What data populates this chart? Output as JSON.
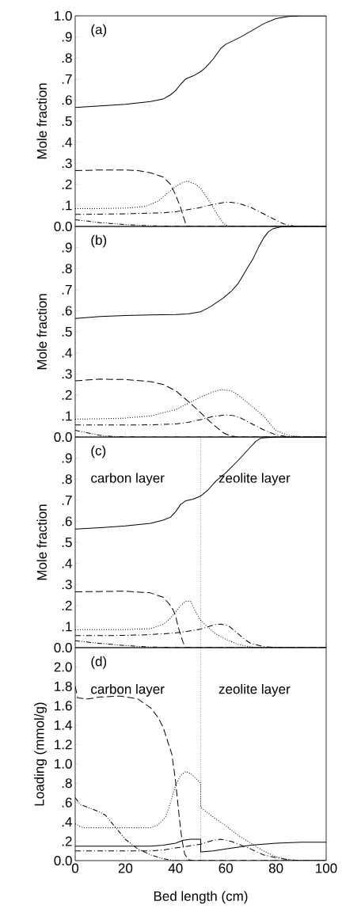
{
  "chart_data": [
    {
      "type": "line",
      "ylabel": "Mole fraction",
      "annotations": [
        "(a)"
      ],
      "xlim": [
        0,
        100
      ],
      "ylim": [
        0,
        1.0
      ],
      "xticks": [
        0,
        20,
        40,
        60,
        80,
        100
      ],
      "tick_labels": "y",
      "yticks": [
        {
          "value": 0,
          "label": "0.0"
        },
        {
          "value": 0.1,
          "label": ".1"
        },
        {
          "value": 0.2,
          "label": ".2"
        },
        {
          "value": 0.3,
          "label": ".3"
        },
        {
          "value": 0.4,
          "label": ".4"
        },
        {
          "value": 0.5,
          "label": ".5"
        },
        {
          "value": 0.6,
          "label": ".6"
        },
        {
          "value": 0.7,
          "label": ".7"
        },
        {
          "value": 0.8,
          "label": ".8"
        },
        {
          "value": 0.9,
          "label": ".9"
        },
        {
          "value": 1.0,
          "label": "1.0"
        }
      ],
      "series": [
        {
          "color": "#000000",
          "line_style": "solid",
          "x": [
            0,
            10,
            20,
            30,
            35,
            38,
            40,
            42,
            44,
            47,
            50,
            52,
            55,
            58,
            60,
            63,
            66,
            70,
            75,
            80,
            85,
            90,
            100
          ],
          "values": [
            0.565,
            0.572,
            0.58,
            0.593,
            0.605,
            0.625,
            0.645,
            0.675,
            0.7,
            0.715,
            0.735,
            0.755,
            0.795,
            0.845,
            0.865,
            0.882,
            0.9,
            0.927,
            0.962,
            0.987,
            0.997,
            1.0,
            1.0
          ]
        },
        {
          "color": "#000000",
          "line_style": "dashed",
          "x": [
            0,
            10,
            20,
            25,
            30,
            35,
            38,
            40,
            41,
            42,
            43,
            44,
            45,
            50,
            100
          ],
          "values": [
            0.265,
            0.268,
            0.268,
            0.265,
            0.255,
            0.235,
            0.2,
            0.15,
            0.12,
            0.09,
            0.05,
            0.015,
            0,
            0,
            0
          ]
        },
        {
          "color": "#000000",
          "line_style": "dotted",
          "x": [
            0,
            10,
            20,
            28,
            33,
            37,
            40,
            43,
            45,
            48,
            50,
            54,
            57,
            59,
            61,
            100
          ],
          "values": [
            0.085,
            0.085,
            0.087,
            0.095,
            0.12,
            0.16,
            0.19,
            0.21,
            0.215,
            0.2,
            0.18,
            0.11,
            0.05,
            0.015,
            0,
            0
          ]
        },
        {
          "color": "#000000",
          "line_style": "dashdot",
          "x": [
            0,
            20,
            35,
            40,
            45,
            50,
            55,
            60,
            62,
            65,
            70,
            75,
            80,
            83,
            87,
            90,
            100
          ],
          "values": [
            0.057,
            0.06,
            0.065,
            0.07,
            0.08,
            0.09,
            0.105,
            0.115,
            0.115,
            0.11,
            0.09,
            0.06,
            0.03,
            0.012,
            0.002,
            0,
            0
          ]
        },
        {
          "color": "#000000",
          "line_style": "dashdotdot",
          "x": [
            0,
            5,
            10,
            20,
            30,
            40,
            50,
            100
          ],
          "values": [
            0.032,
            0.025,
            0.018,
            0.009,
            0.003,
            0.001,
            0,
            0
          ]
        }
      ]
    },
    {
      "type": "line",
      "ylabel": "Mole fraction",
      "annotations": [
        "(b)"
      ],
      "xlim": [
        0,
        100
      ],
      "ylim": [
        0,
        1.0
      ],
      "xticks": [
        0,
        20,
        40,
        60,
        80,
        100
      ],
      "tick_labels": "y",
      "yticks": [
        {
          "value": 0,
          "label": "0.0"
        },
        {
          "value": 0.1,
          "label": ".1"
        },
        {
          "value": 0.2,
          "label": ".2"
        },
        {
          "value": 0.3,
          "label": ".3"
        },
        {
          "value": 0.4,
          "label": ".4"
        },
        {
          "value": 0.5,
          "label": ".5"
        },
        {
          "value": 0.6,
          "label": ".6"
        },
        {
          "value": 0.7,
          "label": ".7"
        },
        {
          "value": 0.8,
          "label": ".8"
        },
        {
          "value": 0.9,
          "label": ".9"
        }
      ],
      "series": [
        {
          "color": "#000000",
          "line_style": "solid",
          "x": [
            0,
            10,
            20,
            30,
            40,
            45,
            50,
            54,
            59,
            62,
            65,
            68,
            71,
            73,
            75,
            77,
            79,
            82,
            88,
            100
          ],
          "values": [
            0.563,
            0.572,
            0.577,
            0.58,
            0.582,
            0.585,
            0.595,
            0.62,
            0.66,
            0.69,
            0.73,
            0.79,
            0.85,
            0.9,
            0.944,
            0.975,
            0.99,
            0.998,
            1.0,
            1.0
          ]
        },
        {
          "color": "#000000",
          "line_style": "dashed",
          "x": [
            0,
            10,
            20,
            30,
            35,
            40,
            45,
            50,
            54,
            59,
            62,
            65,
            100
          ],
          "values": [
            0.267,
            0.275,
            0.273,
            0.263,
            0.25,
            0.22,
            0.17,
            0.115,
            0.07,
            0.02,
            0.005,
            0,
            0
          ]
        },
        {
          "color": "#000000",
          "line_style": "dotted",
          "x": [
            0,
            10,
            20,
            30,
            40,
            45,
            50,
            55,
            58,
            62,
            65,
            70,
            75,
            80,
            85,
            90,
            100
          ],
          "values": [
            0.085,
            0.087,
            0.09,
            0.1,
            0.13,
            0.16,
            0.19,
            0.215,
            0.225,
            0.22,
            0.2,
            0.15,
            0.1,
            0.03,
            0.008,
            0.002,
            0
          ]
        },
        {
          "color": "#000000",
          "line_style": "dashdot",
          "x": [
            0,
            20,
            30,
            40,
            45,
            50,
            55,
            60,
            63,
            66,
            70,
            75,
            80,
            85,
            90,
            100
          ],
          "values": [
            0.057,
            0.057,
            0.058,
            0.062,
            0.07,
            0.083,
            0.098,
            0.105,
            0.102,
            0.09,
            0.065,
            0.035,
            0.01,
            0.001,
            0,
            0
          ]
        },
        {
          "color": "#000000",
          "line_style": "dashdotdot",
          "x": [
            0,
            5,
            10,
            15,
            20,
            30,
            100
          ],
          "values": [
            0.032,
            0.02,
            0.008,
            0.003,
            0.001,
            0,
            0
          ]
        }
      ]
    },
    {
      "type": "line",
      "ylabel": "Mole fraction",
      "annotations": [
        "(c)",
        "carbon layer",
        "zeolite layer"
      ],
      "xlim": [
        0,
        100
      ],
      "ylim": [
        0,
        1.0
      ],
      "xticks": [
        0,
        20,
        40,
        60,
        80,
        100
      ],
      "tick_labels": "y",
      "yticks": [
        {
          "value": 0,
          "label": "0.0"
        },
        {
          "value": 0.1,
          "label": ".1"
        },
        {
          "value": 0.2,
          "label": ".2"
        },
        {
          "value": 0.3,
          "label": ".3"
        },
        {
          "value": 0.4,
          "label": ".4"
        },
        {
          "value": 0.5,
          "label": ".5"
        },
        {
          "value": 0.6,
          "label": ".6"
        },
        {
          "value": 0.7,
          "label": ".7"
        },
        {
          "value": 0.8,
          "label": ".8"
        },
        {
          "value": 0.9,
          "label": ".9"
        }
      ],
      "ref_lines": [
        {
          "axis": "x",
          "value": 50,
          "color": "#000000",
          "line_style": "dotted"
        }
      ],
      "series": [
        {
          "color": "#000000",
          "line_style": "solid",
          "x": [
            0,
            10,
            20,
            30,
            35,
            38,
            40,
            42,
            44,
            47,
            50,
            53,
            56,
            60,
            65,
            70,
            72,
            74,
            80,
            100
          ],
          "values": [
            0.563,
            0.57,
            0.578,
            0.59,
            0.605,
            0.62,
            0.645,
            0.68,
            0.697,
            0.705,
            0.72,
            0.75,
            0.79,
            0.83,
            0.89,
            0.955,
            0.98,
            0.995,
            1.0,
            1.0
          ]
        },
        {
          "color": "#000000",
          "line_style": "dashed",
          "x": [
            0,
            20,
            30,
            35,
            38,
            39,
            40,
            41,
            42,
            43,
            44,
            100
          ],
          "values": [
            0.265,
            0.268,
            0.26,
            0.24,
            0.2,
            0.18,
            0.15,
            0.1,
            0.06,
            0.025,
            0,
            0
          ]
        },
        {
          "color": "#000000",
          "line_style": "dotted",
          "x": [
            0,
            20,
            30,
            35,
            38,
            40,
            42,
            44,
            46,
            48,
            50,
            53,
            56,
            60,
            65,
            70,
            75,
            100
          ],
          "values": [
            0.085,
            0.086,
            0.09,
            0.11,
            0.14,
            0.17,
            0.2,
            0.22,
            0.22,
            0.17,
            0.13,
            0.095,
            0.065,
            0.04,
            0.015,
            0.003,
            0,
            0
          ]
        },
        {
          "color": "#000000",
          "line_style": "dashdot",
          "x": [
            0,
            20,
            30,
            40,
            45,
            50,
            53,
            56,
            58,
            61,
            65,
            68,
            70,
            75,
            80,
            85,
            100
          ],
          "values": [
            0.057,
            0.058,
            0.062,
            0.07,
            0.078,
            0.088,
            0.1,
            0.11,
            0.112,
            0.105,
            0.065,
            0.035,
            0.02,
            0.005,
            0.001,
            0,
            0
          ]
        },
        {
          "color": "#000000",
          "line_style": "dashdotdot",
          "x": [
            0,
            10,
            20,
            30,
            40,
            50,
            100
          ],
          "values": [
            0.033,
            0.02,
            0.01,
            0.003,
            0.001,
            0,
            0
          ]
        }
      ]
    },
    {
      "type": "line",
      "xlabel": "Bed length (cm)",
      "ylabel": "Loading (mmol/g)",
      "annotations": [
        "(d)",
        "carbon layer",
        "zeolite layer"
      ],
      "xlim": [
        0,
        100
      ],
      "ylim": [
        0,
        2.2
      ],
      "xticks": [
        0,
        20,
        40,
        60,
        80,
        100
      ],
      "yticks": [
        {
          "value": 0,
          "label": "0.0"
        },
        {
          "value": 0.2,
          "label": ".2"
        },
        {
          "value": 0.4,
          "label": ".4"
        },
        {
          "value": 0.6,
          "label": ".6"
        },
        {
          "value": 0.8,
          "label": ".8"
        },
        {
          "value": 1.0,
          "label": "1.0"
        },
        {
          "value": 1.2,
          "label": "1.2"
        },
        {
          "value": 1.4,
          "label": "1.4"
        },
        {
          "value": 1.6,
          "label": "1.6"
        },
        {
          "value": 1.8,
          "label": "1.8"
        },
        {
          "value": 2.0,
          "label": "2.0"
        }
      ],
      "ref_lines": [
        {
          "axis": "x",
          "value": 50,
          "color": "#000000",
          "line_style": "dotted"
        }
      ],
      "series": [
        {
          "color": "#000000",
          "line_style": "solid",
          "x": [
            0,
            10,
            20,
            30,
            35,
            40,
            43,
            46,
            50,
            50,
            55,
            60,
            65,
            70,
            75,
            80,
            90,
            100
          ],
          "values": [
            0.15,
            0.15,
            0.15,
            0.15,
            0.16,
            0.18,
            0.21,
            0.22,
            0.22,
            0.09,
            0.1,
            0.12,
            0.14,
            0.16,
            0.17,
            0.18,
            0.19,
            0.19
          ]
        },
        {
          "color": "#000000",
          "line_style": "dashed",
          "x": [
            0,
            1,
            5,
            10,
            18,
            25,
            30,
            33,
            35,
            37,
            38.5,
            40,
            41.5,
            42.5,
            43.6,
            45,
            47,
            100
          ],
          "values": [
            1.8,
            1.68,
            1.67,
            1.69,
            1.7,
            1.67,
            1.58,
            1.48,
            1.38,
            1.22,
            1.1,
            0.82,
            0.44,
            0.22,
            0.07,
            0.01,
            0,
            0
          ]
        },
        {
          "color": "#000000",
          "line_style": "dotted",
          "x": [
            0,
            3,
            10,
            20,
            30,
            33,
            36,
            38,
            40,
            42,
            44,
            46,
            48,
            50,
            50,
            55,
            60,
            65,
            70,
            75,
            80,
            85,
            90,
            100
          ],
          "values": [
            0.38,
            0.34,
            0.34,
            0.34,
            0.34,
            0.37,
            0.45,
            0.6,
            0.78,
            0.88,
            0.92,
            0.9,
            0.85,
            0.8,
            0.55,
            0.45,
            0.36,
            0.26,
            0.18,
            0.1,
            0.04,
            0.01,
            0,
            0
          ]
        },
        {
          "color": "#000000",
          "line_style": "dashdot",
          "x": [
            0,
            10,
            20,
            30,
            35,
            40,
            45,
            50,
            55,
            58,
            62,
            65,
            70,
            75,
            80,
            85,
            90,
            100
          ],
          "values": [
            0.1,
            0.1,
            0.1,
            0.1,
            0.11,
            0.13,
            0.15,
            0.17,
            0.21,
            0.22,
            0.2,
            0.17,
            0.12,
            0.06,
            0.03,
            0.01,
            0,
            0
          ]
        },
        {
          "color": "#000000",
          "line_style": "dashdotdot",
          "x": [
            0,
            2,
            5,
            10,
            12,
            20,
            25,
            30,
            35,
            40,
            100
          ],
          "values": [
            0.65,
            0.58,
            0.55,
            0.5,
            0.47,
            0.22,
            0.12,
            0.06,
            0.02,
            0,
            0
          ]
        }
      ]
    }
  ]
}
